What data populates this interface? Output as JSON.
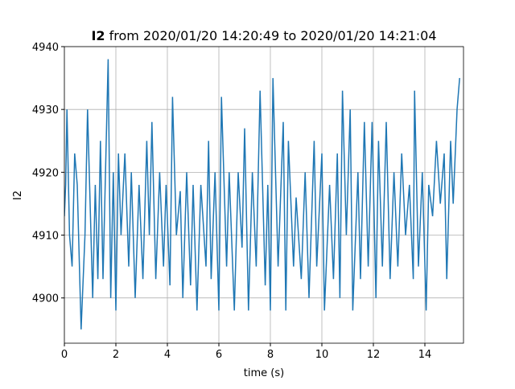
{
  "chart_data": {
    "type": "line",
    "title": {
      "bold": "I2",
      "rest": "from 2020/01/20 14:20:49 to 2020/01/20 14:21:04"
    },
    "xlabel": "time (s)",
    "ylabel": "I2",
    "x": [
      0,
      0.05,
      0.1,
      0.2,
      0.3,
      0.4,
      0.5,
      0.65,
      0.8,
      0.9,
      1.1,
      1.2,
      1.3,
      1.4,
      1.5,
      1.7,
      1.8,
      1.9,
      2.0,
      2.1,
      2.2,
      2.35,
      2.5,
      2.6,
      2.75,
      2.9,
      3.05,
      3.2,
      3.3,
      3.4,
      3.55,
      3.7,
      3.85,
      3.95,
      4.1,
      4.2,
      4.35,
      4.5,
      4.6,
      4.75,
      4.9,
      5.0,
      5.15,
      5.3,
      5.5,
      5.6,
      5.7,
      5.85,
      6.0,
      6.1,
      6.3,
      6.4,
      6.6,
      6.75,
      6.9,
      7.0,
      7.15,
      7.3,
      7.45,
      7.6,
      7.8,
      7.9,
      8.0,
      8.1,
      8.3,
      8.5,
      8.6,
      8.7,
      8.9,
      9.0,
      9.2,
      9.35,
      9.5,
      9.7,
      9.8,
      10.0,
      10.1,
      10.3,
      10.45,
      10.6,
      10.7,
      10.8,
      10.95,
      11.1,
      11.2,
      11.4,
      11.5,
      11.65,
      11.8,
      11.95,
      12.1,
      12.2,
      12.35,
      12.5,
      12.65,
      12.8,
      12.95,
      13.1,
      13.25,
      13.4,
      13.55,
      13.6,
      13.75,
      13.9,
      14.05,
      14.15,
      14.3,
      14.45,
      14.6,
      14.75,
      14.85,
      15.0,
      15.1,
      15.25,
      15.35
    ],
    "series": [
      {
        "name": "I2",
        "color": "#1f77b4",
        "values": [
          4913,
          4918,
          4930,
          4910,
          4905,
          4923,
          4918,
          4895,
          4910,
          4930,
          4900,
          4918,
          4903,
          4925,
          4903,
          4938,
          4900,
          4920,
          4898,
          4923,
          4910,
          4923,
          4905,
          4920,
          4900,
          4918,
          4903,
          4925,
          4910,
          4928,
          4903,
          4920,
          4905,
          4918,
          4902,
          4932,
          4910,
          4917,
          4900,
          4920,
          4902,
          4918,
          4898,
          4918,
          4905,
          4925,
          4903,
          4920,
          4898,
          4932,
          4905,
          4920,
          4898,
          4920,
          4908,
          4927,
          4898,
          4920,
          4905,
          4933,
          4902,
          4918,
          4898,
          4935,
          4905,
          4928,
          4898,
          4925,
          4905,
          4916,
          4903,
          4920,
          4900,
          4925,
          4905,
          4923,
          4898,
          4918,
          4903,
          4923,
          4900,
          4933,
          4910,
          4930,
          4898,
          4920,
          4903,
          4928,
          4905,
          4928,
          4900,
          4925,
          4905,
          4928,
          4903,
          4920,
          4905,
          4923,
          4910,
          4918,
          4903,
          4933,
          4905,
          4920,
          4898,
          4918,
          4913,
          4925,
          4915,
          4923,
          4903,
          4925,
          4915,
          4930,
          4935
        ]
      }
    ],
    "xlim": [
      0,
      15.5
    ],
    "ylim": [
      4892.8,
      4940
    ],
    "xticks": [
      0,
      2,
      4,
      6,
      8,
      10,
      12,
      14
    ],
    "yticks": [
      4900,
      4910,
      4920,
      4930,
      4940
    ],
    "grid": true
  }
}
